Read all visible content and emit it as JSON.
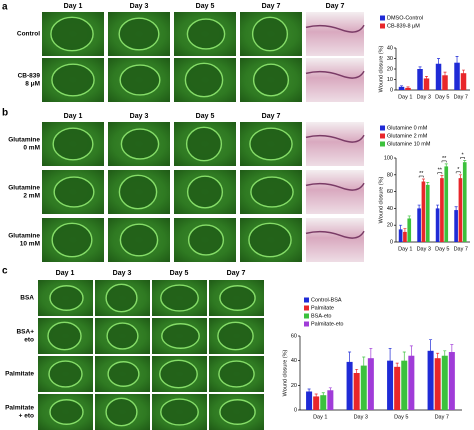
{
  "panel_a": {
    "label": "a",
    "headers": [
      "Day 1",
      "Day 3",
      "Day 5",
      "Day 7",
      "Day 7"
    ],
    "rows": [
      [
        "Control"
      ],
      [
        "CB-839",
        "8 μM"
      ]
    ]
  },
  "panel_b": {
    "label": "b",
    "headers": [
      "Day 1",
      "Day 3",
      "Day 5",
      "Day 7"
    ],
    "rows": [
      [
        "Glutamine",
        "0 mM"
      ],
      [
        "Glutamine",
        "2 mM"
      ],
      [
        "Glutamine",
        "10 mM"
      ]
    ]
  },
  "panel_c": {
    "label": "c",
    "headers": [
      "Day 1",
      "Day 3",
      "Day 5",
      "Day 7"
    ],
    "rows": [
      [
        "BSA"
      ],
      [
        "BSA+",
        "eto"
      ],
      [
        "Palmitate"
      ],
      [
        "Palmitate",
        "+ eto"
      ]
    ]
  },
  "chart_data": [
    {
      "type": "bar",
      "y_label": "Wound closure (%)",
      "categories": [
        "Day 1",
        "Day 3",
        "Day 5",
        "Day 7"
      ],
      "series": [
        {
          "name": "DMSO-Control",
          "color": "#1f2bd6",
          "values": [
            3,
            20,
            25,
            26
          ],
          "errors": [
            1,
            2,
            5,
            6
          ]
        },
        {
          "name": "CB-839-8 μM",
          "color": "#e8262a",
          "values": [
            2,
            11,
            14,
            16
          ],
          "errors": [
            1,
            2,
            3,
            3
          ]
        }
      ],
      "ylim": [
        0,
        40
      ],
      "yticks": [
        0,
        10,
        20,
        30,
        40
      ],
      "annotations": []
    },
    {
      "type": "bar",
      "y_label": "Wound closure (%)",
      "categories": [
        "Day 1",
        "Day 3",
        "Day 5",
        "Day 7"
      ],
      "series": [
        {
          "name": "Glutamine 0 mM",
          "color": "#1f2bd6",
          "values": [
            15,
            40,
            40,
            38
          ],
          "errors": [
            5,
            4,
            4,
            4
          ]
        },
        {
          "name": "Glutamine 2 mM",
          "color": "#e8262a",
          "values": [
            12,
            72,
            76,
            76
          ],
          "errors": [
            4,
            3,
            3,
            4
          ]
        },
        {
          "name": "Glutamine 10 mM",
          "color": "#3cc13c",
          "values": [
            28,
            68,
            90,
            95
          ],
          "errors": [
            3,
            3,
            3,
            2
          ]
        }
      ],
      "ylim": [
        0,
        100
      ],
      "yticks": [
        0,
        20,
        40,
        60,
        80,
        100
      ],
      "annotations": [
        {
          "text": "**",
          "category": 1,
          "series": [
            0,
            1
          ]
        },
        {
          "text": "**",
          "category": 2,
          "series": [
            0,
            1
          ]
        },
        {
          "text": "**",
          "category": 2,
          "series": [
            1,
            2
          ]
        },
        {
          "text": "*",
          "category": 3,
          "series": [
            0,
            1
          ]
        },
        {
          "text": "*",
          "category": 3,
          "series": [
            1,
            2
          ]
        }
      ]
    },
    {
      "type": "bar",
      "y_label": "Wound closure (%)",
      "categories": [
        "Day 1",
        "Day 3",
        "Day 5",
        "Day 7"
      ],
      "series": [
        {
          "name": "Control-BSA",
          "color": "#1f2bd6",
          "values": [
            15,
            39,
            40,
            48
          ],
          "errors": [
            2,
            8,
            10,
            9
          ]
        },
        {
          "name": "Palmitate",
          "color": "#e8262a",
          "values": [
            11,
            30,
            35,
            42
          ],
          "errors": [
            2,
            3,
            3,
            4
          ]
        },
        {
          "name": "BSA-eto",
          "color": "#3cc13c",
          "values": [
            12,
            36,
            40,
            44
          ],
          "errors": [
            2,
            7,
            7,
            4
          ]
        },
        {
          "name": "Palmitate-eto",
          "color": "#a03cd8",
          "values": [
            16,
            42,
            44,
            47
          ],
          "errors": [
            2,
            8,
            8,
            6
          ]
        }
      ],
      "ylim": [
        0,
        60
      ],
      "yticks": [
        0,
        20,
        40,
        60
      ],
      "annotations": []
    }
  ]
}
